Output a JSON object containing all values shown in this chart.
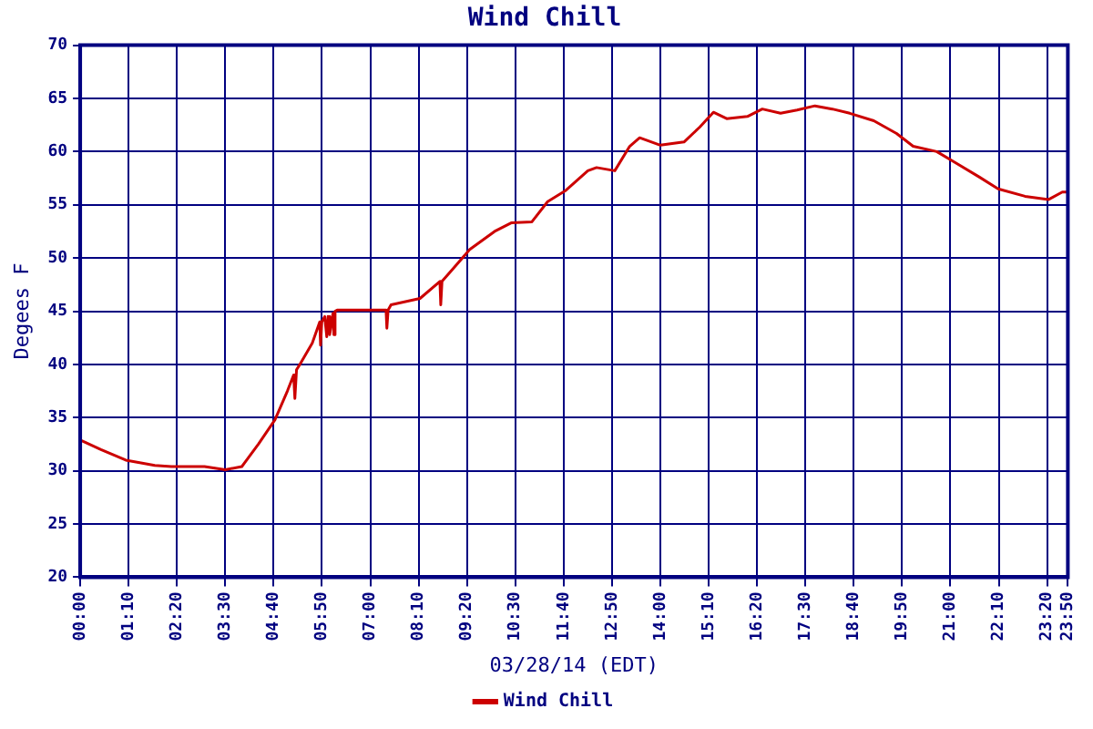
{
  "chart_data": {
    "type": "line",
    "title": "Wind Chill",
    "xlabel": "03/28/14 (EDT)",
    "ylabel": "Degees F",
    "x": [
      0,
      0.5,
      1.1,
      1.8,
      2.2,
      3.0,
      3.5,
      3.9,
      4.3,
      4.7,
      5.0,
      5.15,
      5.18,
      5.22,
      5.3,
      5.6,
      5.78,
      5.8,
      5.83,
      5.9,
      5.95,
      5.98,
      6.02,
      6.1,
      6.12,
      6.15,
      6.2,
      7.0,
      7.38,
      7.4,
      7.43,
      7.5,
      8.2,
      8.68,
      8.7,
      8.73,
      9.0,
      9.4,
      10.0,
      10.4,
      10.9,
      11.28,
      11.7,
      12.25,
      12.46,
      12.9,
      13.26,
      13.5,
      14.0,
      14.57,
      14.95,
      15.28,
      15.6,
      16.1,
      16.46,
      16.9,
      17.3,
      17.73,
      18.15,
      18.57,
      19.15,
      19.7,
      20.1,
      20.67,
      21.1,
      21.7,
      22.15,
      22.8,
      23.37,
      23.7,
      23.83
    ],
    "series": [
      {
        "name": "Wind Chill",
        "color": "#cc0000",
        "values": [
          32.9,
          32.0,
          31.0,
          30.5,
          30.4,
          30.4,
          30.1,
          30.4,
          32.5,
          34.8,
          37.5,
          39.0,
          36.8,
          39.5,
          40.0,
          42.0,
          44.0,
          41.8,
          44.0,
          44.5,
          42.6,
          44.5,
          42.8,
          44.8,
          42.8,
          45.0,
          45.1,
          45.1,
          45.1,
          43.4,
          45.1,
          45.6,
          46.2,
          47.8,
          45.6,
          47.8,
          49.0,
          50.8,
          52.5,
          53.3,
          53.4,
          55.3,
          56.3,
          58.2,
          58.5,
          58.2,
          60.5,
          61.3,
          60.6,
          60.9,
          62.3,
          63.7,
          63.1,
          63.3,
          64.0,
          63.6,
          63.9,
          64.3,
          64.0,
          63.6,
          62.9,
          61.7,
          60.5,
          60.0,
          59.0,
          57.6,
          56.5,
          55.8,
          55.5,
          56.2,
          56.2
        ]
      }
    ],
    "xlim": [
      0,
      23.8333
    ],
    "xticks": [
      {
        "value": 0,
        "label": "00:00"
      },
      {
        "value": 1.1667,
        "label": "01:10"
      },
      {
        "value": 2.3333,
        "label": "02:20"
      },
      {
        "value": 3.5,
        "label": "03:30"
      },
      {
        "value": 4.6667,
        "label": "04:40"
      },
      {
        "value": 5.8333,
        "label": "05:50"
      },
      {
        "value": 7,
        "label": "07:00"
      },
      {
        "value": 8.1667,
        "label": "08:10"
      },
      {
        "value": 9.3333,
        "label": "09:20"
      },
      {
        "value": 10.5,
        "label": "10:30"
      },
      {
        "value": 11.6667,
        "label": "11:40"
      },
      {
        "value": 12.8333,
        "label": "12:50"
      },
      {
        "value": 14,
        "label": "14:00"
      },
      {
        "value": 15.1667,
        "label": "15:10"
      },
      {
        "value": 16.3333,
        "label": "16:20"
      },
      {
        "value": 17.5,
        "label": "17:30"
      },
      {
        "value": 18.6667,
        "label": "18:40"
      },
      {
        "value": 19.8333,
        "label": "19:50"
      },
      {
        "value": 21,
        "label": "21:00"
      },
      {
        "value": 22.1667,
        "label": "22:10"
      },
      {
        "value": 23.3333,
        "label": "23:20"
      },
      {
        "value": 23.8333,
        "label": "23:50"
      }
    ],
    "ylim": [
      20,
      70
    ],
    "yticks": [
      20,
      25,
      30,
      35,
      40,
      45,
      50,
      55,
      60,
      65,
      70
    ],
    "grid": true,
    "legend": "bottom",
    "marker": "none",
    "line_style": "solid"
  }
}
